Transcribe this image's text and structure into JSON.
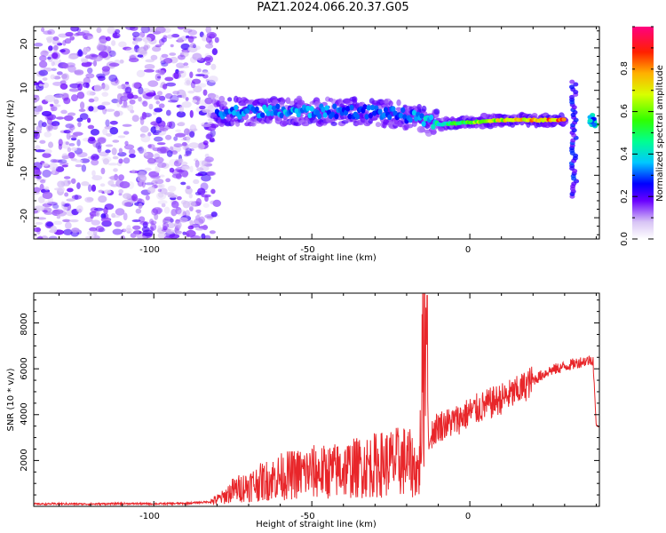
{
  "title": "PAZ1.2024.066.20.37.G05",
  "colors": {
    "snr_line": "#e8262a",
    "speckle": "#8a2be2",
    "frame": "#000000"
  },
  "colorbar": {
    "label": "Normalized spectral amplitude",
    "ticks": [
      "0.0",
      "0.2",
      "0.4",
      "0.6",
      "0.8"
    ]
  },
  "chart_data": [
    {
      "type": "heatmap",
      "title": "",
      "xlabel": "Height of straight line (km)",
      "ylabel": "Frequency (Hz)",
      "xlim": [
        -138,
        41
      ],
      "ylim": [
        -25,
        25
      ],
      "x_ticks": [
        "-100",
        "-50",
        "0"
      ],
      "y_ticks": [
        "20",
        "10",
        "0",
        "-10",
        "-20"
      ],
      "colorbar_range": [
        0,
        1
      ],
      "grid": false,
      "features": {
        "noise_region_x": [
          -138,
          -80
        ],
        "ridge": {
          "x": [
            -80,
            -70,
            -60,
            -50,
            -40,
            -30,
            -20,
            -10,
            0,
            10,
            20,
            30
          ],
          "frequency": [
            5,
            5,
            5,
            5,
            5,
            5,
            4,
            2,
            2.5,
            3,
            3,
            3
          ],
          "amplitude": [
            0.3,
            0.35,
            0.35,
            0.35,
            0.3,
            0.3,
            0.3,
            0.45,
            0.6,
            0.7,
            0.8,
            0.85
          ]
        },
        "vertical_streak_x": 33,
        "vertical_streak_frequency_range": [
          -15,
          12
        ],
        "right_edge_blob_x": 39,
        "right_edge_blob_frequency": 3
      }
    },
    {
      "type": "line",
      "title": "",
      "xlabel": "Height of straight line (km)",
      "ylabel": "SNR (10 * v/v)",
      "xlim": [
        -138,
        41
      ],
      "ylim": [
        0,
        9300
      ],
      "x_ticks": [
        "-100",
        "-50",
        "0"
      ],
      "y_ticks": [
        "2000",
        "4000",
        "6000",
        "8000"
      ],
      "grid": false,
      "series": [
        {
          "x": [
            -138,
            -130,
            -120,
            -110,
            -100,
            -90,
            -82,
            -78,
            -75,
            -70,
            -65,
            -60,
            -55,
            -50,
            -45,
            -40,
            -35,
            -30,
            -25,
            -20,
            -16,
            -14,
            -13,
            -12,
            -10,
            -5,
            0,
            5,
            10,
            15,
            20,
            25,
            30,
            35,
            39,
            40,
            41
          ],
          "y": [
            100,
            110,
            100,
            120,
            110,
            130,
            200,
            400,
            700,
            900,
            1100,
            1300,
            1400,
            1500,
            1500,
            1600,
            1700,
            1800,
            1900,
            2000,
            1500,
            9200,
            2500,
            3200,
            3500,
            3700,
            4100,
            4400,
            4700,
            5000,
            5500,
            5900,
            6100,
            6300,
            6400,
            3500,
            3500
          ]
        }
      ]
    }
  ]
}
